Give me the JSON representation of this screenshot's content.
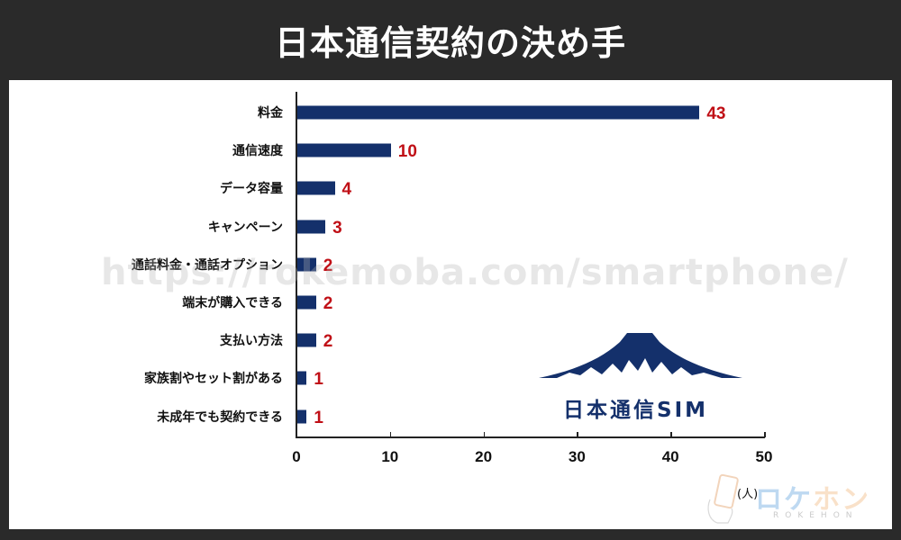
{
  "header": {
    "title": "日本通信契約の決め手"
  },
  "chart_data": {
    "type": "bar",
    "orientation": "horizontal",
    "title": "日本通信契約の決め手",
    "categories": [
      "料金",
      "通信速度",
      "データ容量",
      "キャンペーン",
      "通話料金・通話オプション",
      "端末が購入できる",
      "支払い方法",
      "家族割やセット割がある",
      "未成年でも契約できる"
    ],
    "values": [
      43,
      10,
      4,
      3,
      2,
      2,
      2,
      1,
      1
    ],
    "value_labels": [
      "43",
      "10",
      "4",
      "3",
      "2",
      "2",
      "2",
      "1",
      "1"
    ],
    "xlabel": "(人)",
    "ylabel": "",
    "xlim": [
      0,
      50
    ],
    "x_ticks": [
      "0",
      "10",
      "20",
      "30",
      "40",
      "50"
    ],
    "grid": false,
    "legend": null,
    "bar_color": "#14306b",
    "label_color": "#c00f16"
  },
  "overlays": {
    "watermark": "https://rokemoba.com/smartphone/",
    "logo_text": "日本通信SIM",
    "brand_name_part1": "ロケ",
    "brand_name_part2": "ホン",
    "brand_sub": "ROKEHON"
  }
}
